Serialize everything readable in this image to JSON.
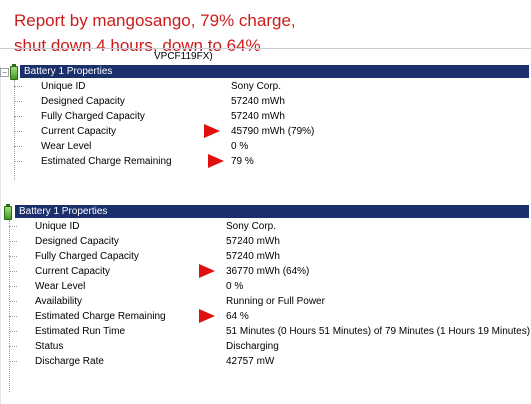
{
  "caption": {
    "line1": "Report by mangosango, 79% charge,",
    "line2": "shut down 4 hours, down to 64%"
  },
  "model_fragment": "VPCF119FX)",
  "colors": {
    "caption": "#cc1b1b",
    "header_bg": "#1b2f6b",
    "arrow": "#e01010"
  },
  "panels": [
    {
      "title": "Battery 1 Properties",
      "icon": "battery-icon",
      "rows": [
        {
          "label": "Unique ID",
          "value": "Sony Corp."
        },
        {
          "label": "Designed Capacity",
          "value": "57240 mWh"
        },
        {
          "label": "Fully Charged Capacity",
          "value": "57240 mWh"
        },
        {
          "label": "Current Capacity",
          "value": "45790 mWh (79%)"
        },
        {
          "label": "Wear Level",
          "value": "0 %"
        },
        {
          "label": "Estimated Charge Remaining",
          "value": "79 %"
        }
      ]
    },
    {
      "title": "Battery 1 Properties",
      "icon": "battery-icon",
      "rows": [
        {
          "label": "Unique ID",
          "value": "Sony Corp."
        },
        {
          "label": "Designed Capacity",
          "value": "57240 mWh"
        },
        {
          "label": "Fully Charged Capacity",
          "value": "57240 mWh"
        },
        {
          "label": "Current Capacity",
          "value": "36770 mWh (64%)"
        },
        {
          "label": "Wear Level",
          "value": "0 %"
        },
        {
          "label": "Availability",
          "value": "Running or Full Power"
        },
        {
          "label": "Estimated Charge Remaining",
          "value": "64 %"
        },
        {
          "label": "Estimated Run Time",
          "value": "51 Minutes (0 Hours 51 Minutes) of 79 Minutes (1 Hours 19 Minutes)"
        },
        {
          "label": "Status",
          "value": "Discharging"
        },
        {
          "label": "Discharge Rate",
          "value": "42757 mW"
        }
      ]
    }
  ]
}
